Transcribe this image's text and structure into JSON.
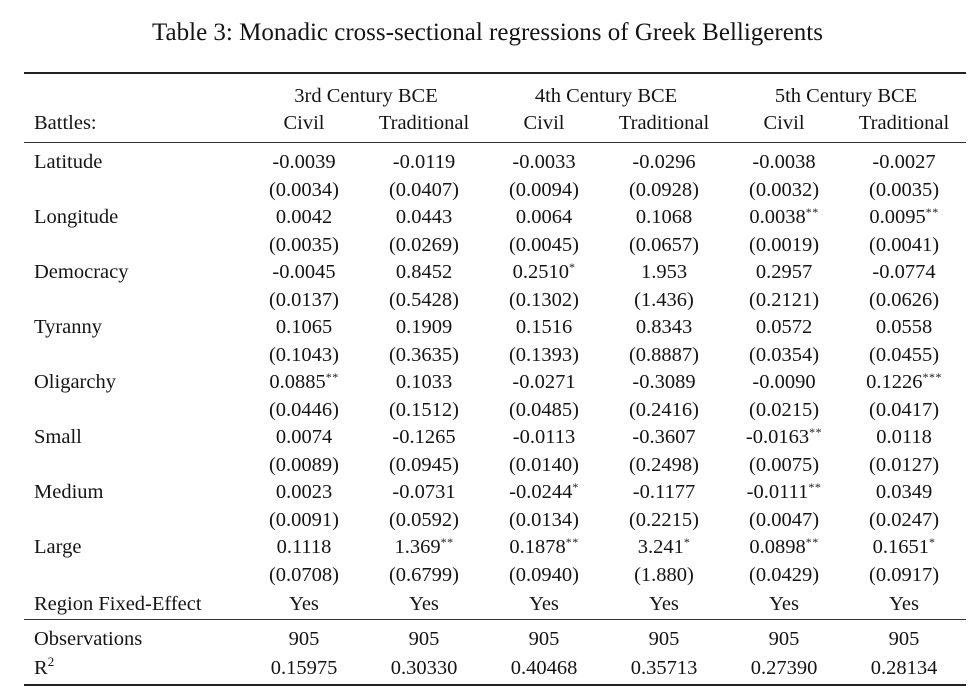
{
  "caption": "Table 3:  Monadic cross-sectional regressions of Greek Belligerents",
  "header": {
    "row_label": "Battles:",
    "centuries": [
      "3rd Century BCE",
      "4th Century BCE",
      "5th Century BCE"
    ],
    "columns": [
      "Civil",
      "Traditional",
      "Civil",
      "Traditional",
      "Civil",
      "Traditional"
    ]
  },
  "rows": [
    {
      "label": "Latitude",
      "coef": [
        {
          "v": "-0.0039",
          "s": ""
        },
        {
          "v": "-0.0119",
          "s": ""
        },
        {
          "v": "-0.0033",
          "s": ""
        },
        {
          "v": "-0.0296",
          "s": ""
        },
        {
          "v": "-0.0038",
          "s": ""
        },
        {
          "v": "-0.0027",
          "s": ""
        }
      ],
      "se": [
        "(0.0034)",
        "(0.0407)",
        "(0.0094)",
        "(0.0928)",
        "(0.0032)",
        "(0.0035)"
      ]
    },
    {
      "label": "Longitude",
      "coef": [
        {
          "v": "0.0042",
          "s": ""
        },
        {
          "v": "0.0443",
          "s": ""
        },
        {
          "v": "0.0064",
          "s": ""
        },
        {
          "v": "0.1068",
          "s": ""
        },
        {
          "v": "0.0038",
          "s": "**"
        },
        {
          "v": "0.0095",
          "s": "**"
        }
      ],
      "se": [
        "(0.0035)",
        "(0.0269)",
        "(0.0045)",
        "(0.0657)",
        "(0.0019)",
        "(0.0041)"
      ]
    },
    {
      "label": "Democracy",
      "coef": [
        {
          "v": "-0.0045",
          "s": ""
        },
        {
          "v": "0.8452",
          "s": ""
        },
        {
          "v": "0.2510",
          "s": "*"
        },
        {
          "v": "1.953",
          "s": ""
        },
        {
          "v": "0.2957",
          "s": ""
        },
        {
          "v": "-0.0774",
          "s": ""
        }
      ],
      "se": [
        "(0.0137)",
        "(0.5428)",
        "(0.1302)",
        "(1.436)",
        "(0.2121)",
        "(0.0626)"
      ]
    },
    {
      "label": "Tyranny",
      "coef": [
        {
          "v": "0.1065",
          "s": ""
        },
        {
          "v": "0.1909",
          "s": ""
        },
        {
          "v": "0.1516",
          "s": ""
        },
        {
          "v": "0.8343",
          "s": ""
        },
        {
          "v": "0.0572",
          "s": ""
        },
        {
          "v": "0.0558",
          "s": ""
        }
      ],
      "se": [
        "(0.1043)",
        "(0.3635)",
        "(0.1393)",
        "(0.8887)",
        "(0.0354)",
        "(0.0455)"
      ]
    },
    {
      "label": "Oligarchy",
      "coef": [
        {
          "v": "0.0885",
          "s": "**"
        },
        {
          "v": "0.1033",
          "s": ""
        },
        {
          "v": "-0.0271",
          "s": ""
        },
        {
          "v": "-0.3089",
          "s": ""
        },
        {
          "v": "-0.0090",
          "s": ""
        },
        {
          "v": "0.1226",
          "s": "***"
        }
      ],
      "se": [
        "(0.0446)",
        "(0.1512)",
        "(0.0485)",
        "(0.2416)",
        "(0.0215)",
        "(0.0417)"
      ]
    },
    {
      "label": "Small",
      "coef": [
        {
          "v": "0.0074",
          "s": ""
        },
        {
          "v": "-0.1265",
          "s": ""
        },
        {
          "v": "-0.0113",
          "s": ""
        },
        {
          "v": "-0.3607",
          "s": ""
        },
        {
          "v": "-0.0163",
          "s": "**"
        },
        {
          "v": "0.0118",
          "s": ""
        }
      ],
      "se": [
        "(0.0089)",
        "(0.0945)",
        "(0.0140)",
        "(0.2498)",
        "(0.0075)",
        "(0.0127)"
      ]
    },
    {
      "label": "Medium",
      "coef": [
        {
          "v": "0.0023",
          "s": ""
        },
        {
          "v": "-0.0731",
          "s": ""
        },
        {
          "v": "-0.0244",
          "s": "*"
        },
        {
          "v": "-0.1177",
          "s": ""
        },
        {
          "v": "-0.0111",
          "s": "**"
        },
        {
          "v": "0.0349",
          "s": ""
        }
      ],
      "se": [
        "(0.0091)",
        "(0.0592)",
        "(0.0134)",
        "(0.2215)",
        "(0.0047)",
        "(0.0247)"
      ]
    },
    {
      "label": "Large",
      "coef": [
        {
          "v": "0.1118",
          "s": ""
        },
        {
          "v": "1.369",
          "s": "**"
        },
        {
          "v": "0.1878",
          "s": "**"
        },
        {
          "v": "3.241",
          "s": "*"
        },
        {
          "v": "0.0898",
          "s": "**"
        },
        {
          "v": "0.1651",
          "s": "*"
        }
      ],
      "se": [
        "(0.0708)",
        "(0.6799)",
        "(0.0940)",
        "(1.880)",
        "(0.0429)",
        "(0.0917)"
      ]
    }
  ],
  "fixed_effect": {
    "label": "Region Fixed-Effect",
    "values": [
      "Yes",
      "Yes",
      "Yes",
      "Yes",
      "Yes",
      "Yes"
    ]
  },
  "observations": {
    "label": "Observations",
    "values": [
      "905",
      "905",
      "905",
      "905",
      "905",
      "905"
    ]
  },
  "r2": {
    "label": "R",
    "exponent": "2",
    "values": [
      "0.15975",
      "0.30330",
      "0.40468",
      "0.35713",
      "0.27390",
      "0.28134"
    ]
  }
}
